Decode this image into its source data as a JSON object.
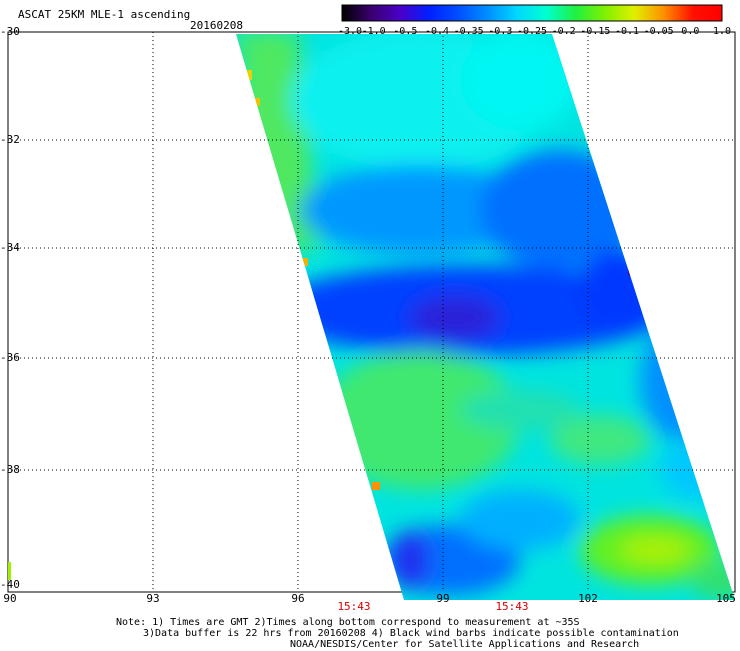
{
  "header": {
    "title": "ASCAT 25KM MLE-1 ascending",
    "date": "20160208"
  },
  "colorbar": {
    "labels": [
      "-3.0",
      "-1.0",
      "-0.5",
      "-0.4",
      "-0.35",
      "-0.3",
      "-0.25",
      "-0.2",
      "-0.15",
      "-0.1",
      "-0.05",
      "0.0",
      "1.0"
    ],
    "colors": [
      "#000000",
      "#3a0070",
      "#4a00c8",
      "#0020ff",
      "#0050ff",
      "#0090ff",
      "#00d8ff",
      "#00ffd0",
      "#20f040",
      "#80f000",
      "#e0f000",
      "#ff9000",
      "#ff1000",
      "#ff0000"
    ]
  },
  "axes": {
    "y_ticks": [
      "-30",
      "-32",
      "-34",
      "-36",
      "-38",
      "-40"
    ],
    "x_ticks": [
      "90",
      "93",
      "96",
      "99",
      "102",
      "105"
    ],
    "times": [
      "15:43",
      "15:43"
    ]
  },
  "notes": {
    "line1": "Note: 1) Times are GMT 2)Times along bottom correspond to measurement at ~35S",
    "line2": "3)Data buffer is 22 hrs from 20160208 4) Black wind barbs indicate possible contamination",
    "line3": "NOAA/NESDIS/Center for Satellite Applications and Research"
  }
}
